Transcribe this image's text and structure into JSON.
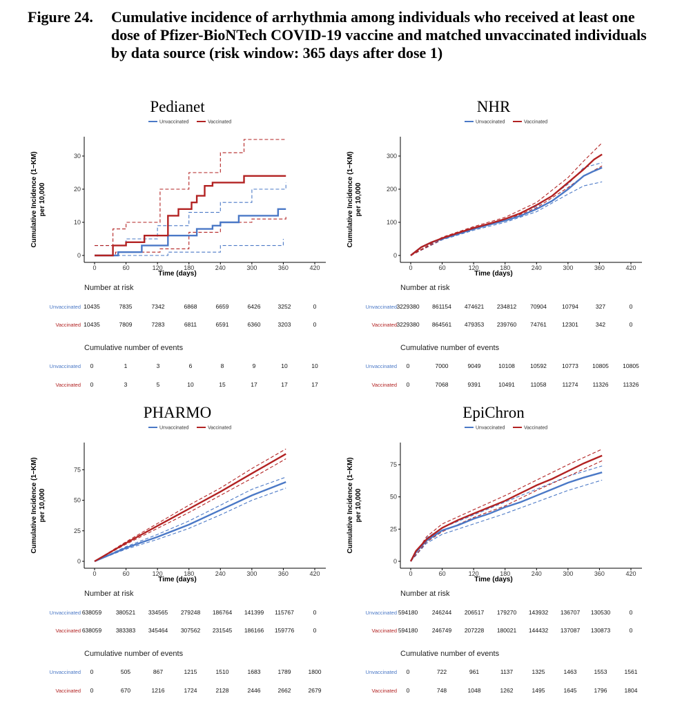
{
  "figure": {
    "label": "Figure 24.",
    "title": "Cumulative incidence of arrhythmia among individuals who received at least one dose of Pfizer-BioNTech COVID-19 vaccine and matched unvaccinated individuals by data source (risk window: 365 days after dose 1)"
  },
  "colors": {
    "unvaccinated": "#4a78c6",
    "vaccinated": "#b22222"
  },
  "legend": {
    "unvaccinated": "Unvaccinated",
    "vaccinated": "Vaccinated"
  },
  "labels": {
    "xlabel": "Time (days)",
    "ylabel_line1": "Cumulative Incidence (1−KM)",
    "ylabel_line2": "per 10,000",
    "risk_title": "Number at risk",
    "events_title": "Cumulative number of events",
    "row_unvacc": "Unvaccinated",
    "row_vacc": "Vaccinated"
  },
  "chart_data": [
    {
      "type": "line",
      "title": "Pedianet",
      "xlabel": "Time (days)",
      "ylabel": "Cumulative Incidence (1−KM) per 10,000",
      "xlim": [
        0,
        420
      ],
      "ylim": [
        0,
        35
      ],
      "x_ticks": [
        0,
        60,
        120,
        180,
        240,
        300,
        360,
        420
      ],
      "y_ticks": [
        0,
        10,
        20,
        30
      ],
      "step": true,
      "legend_position": "top",
      "series": [
        {
          "name": "Unvaccinated",
          "x": [
            0,
            40,
            45,
            60,
            90,
            125,
            140,
            170,
            195,
            215,
            225,
            240,
            255,
            275,
            300,
            350,
            365
          ],
          "y": [
            0,
            0,
            1,
            1,
            3,
            3,
            6,
            6,
            8,
            8,
            9,
            10,
            10,
            12,
            12,
            14,
            14
          ]
        },
        {
          "name": "Vaccinated",
          "x": [
            0,
            35,
            60,
            95,
            125,
            140,
            160,
            185,
            195,
            210,
            225,
            260,
            285,
            300,
            365
          ],
          "y": [
            0,
            3,
            4,
            6,
            6,
            12,
            14,
            16,
            18,
            21,
            22,
            22,
            24,
            24,
            24
          ]
        }
      ],
      "ci_bands": [
        {
          "series": "Unvaccinated",
          "lower": {
            "x": [
              0,
              45,
              140,
              240,
              360
            ],
            "y": [
              0,
              0,
              1,
              3,
              5
            ]
          },
          "upper": {
            "x": [
              0,
              60,
              120,
              180,
              240,
              300,
              365
            ],
            "y": [
              3,
              5,
              9,
              13,
              16,
              20,
              22
            ]
          }
        },
        {
          "series": "Vaccinated",
          "lower": {
            "x": [
              0,
              40,
              125,
              180,
              240,
              300,
              365
            ],
            "y": [
              0,
              1,
              2,
              7,
              10,
              11,
              12
            ]
          },
          "upper": {
            "x": [
              0,
              35,
              60,
              125,
              180,
              240,
              285,
              365
            ],
            "y": [
              3,
              8,
              10,
              20,
              25,
              31,
              35,
              35
            ]
          }
        }
      ],
      "risk_table": {
        "times": [
          0,
          60,
          120,
          180,
          240,
          300,
          360,
          420
        ],
        "number_at_risk": {
          "Unvaccinated": [
            "10435",
            "7835",
            "7342",
            "6868",
            "6659",
            "6426",
            "3252",
            "0"
          ],
          "Vaccinated": [
            "10435",
            "7809",
            "7283",
            "6811",
            "6591",
            "6360",
            "3203",
            "0"
          ]
        },
        "cumulative_events": {
          "Unvaccinated": [
            "0",
            "1",
            "3",
            "6",
            "8",
            "9",
            "10",
            "10"
          ],
          "Vaccinated": [
            "0",
            "3",
            "5",
            "10",
            "15",
            "17",
            "17",
            "17"
          ]
        }
      }
    },
    {
      "type": "line",
      "title": "NHR",
      "xlabel": "Time (days)",
      "ylabel": "Cumulative Incidence (1−KM) per 10,000",
      "xlim": [
        0,
        420
      ],
      "ylim": [
        0,
        350
      ],
      "x_ticks": [
        0,
        60,
        120,
        180,
        240,
        300,
        360,
        420
      ],
      "y_ticks": [
        0,
        100,
        200,
        300
      ],
      "step": false,
      "legend_position": "top",
      "series": [
        {
          "name": "Unvaccinated",
          "x": [
            0,
            20,
            40,
            60,
            90,
            120,
            150,
            180,
            210,
            240,
            270,
            300,
            330,
            350,
            365
          ],
          "y": [
            0,
            25,
            40,
            50,
            65,
            80,
            93,
            105,
            120,
            140,
            165,
            200,
            240,
            255,
            265
          ]
        },
        {
          "name": "Vaccinated",
          "x": [
            0,
            20,
            40,
            60,
            90,
            120,
            150,
            180,
            210,
            240,
            270,
            300,
            330,
            350,
            365
          ],
          "y": [
            0,
            25,
            40,
            52,
            68,
            83,
            96,
            110,
            128,
            152,
            180,
            220,
            260,
            290,
            305
          ]
        }
      ],
      "ci_bands": [
        {
          "series": "Unvaccinated",
          "lower": {
            "x": [
              0,
              60,
              120,
              180,
              240,
              300,
              330,
              365
            ],
            "y": [
              0,
              47,
              76,
              100,
              132,
              185,
              210,
              222
            ]
          },
          "upper": {
            "x": [
              0,
              60,
              120,
              180,
              240,
              300,
              330,
              365
            ],
            "y": [
              0,
              53,
              84,
              110,
              148,
              215,
              265,
              280
            ]
          }
        },
        {
          "series": "Vaccinated",
          "lower": {
            "x": [
              0,
              60,
              120,
              180,
              240,
              300,
              330,
              365
            ],
            "y": [
              0,
              49,
              79,
              105,
              144,
              205,
              240,
              270
            ]
          },
          "upper": {
            "x": [
              0,
              60,
              120,
              180,
              240,
              300,
              330,
              365
            ],
            "y": [
              0,
              55,
              87,
              115,
              160,
              235,
              285,
              340
            ]
          }
        }
      ],
      "risk_table": {
        "times": [
          0,
          60,
          120,
          180,
          240,
          300,
          360,
          420
        ],
        "number_at_risk": {
          "Unvaccinated": [
            "3229380",
            "861154",
            "474621",
            "234812",
            "70904",
            "10794",
            "327",
            "0"
          ],
          "Vaccinated": [
            "3229380",
            "864561",
            "479353",
            "239760",
            "74761",
            "12301",
            "342",
            "0"
          ]
        },
        "cumulative_events": {
          "Unvaccinated": [
            "0",
            "7000",
            "9049",
            "10108",
            "10592",
            "10773",
            "10805",
            "10805"
          ],
          "Vaccinated": [
            "0",
            "7068",
            "9391",
            "10491",
            "11058",
            "11274",
            "11326",
            "11326"
          ]
        }
      }
    },
    {
      "type": "line",
      "title": "PHARMO",
      "xlabel": "Time (days)",
      "ylabel": "Cumulative Incidence (1−KM) per 10,000",
      "xlim": [
        0,
        420
      ],
      "ylim": [
        0,
        95
      ],
      "x_ticks": [
        0,
        60,
        120,
        180,
        240,
        300,
        360,
        420
      ],
      "y_ticks": [
        0,
        25,
        50,
        75
      ],
      "step": false,
      "legend_position": "top",
      "series": [
        {
          "name": "Unvaccinated",
          "x": [
            0,
            60,
            120,
            180,
            240,
            300,
            365
          ],
          "y": [
            0,
            11,
            20,
            30,
            42,
            54,
            65
          ]
        },
        {
          "name": "Vaccinated",
          "x": [
            0,
            60,
            120,
            180,
            240,
            300,
            365
          ],
          "y": [
            0,
            15,
            29,
            43,
            57,
            72,
            88
          ]
        }
      ],
      "ci_bands": [
        {
          "series": "Unvaccinated",
          "lower": {
            "x": [
              0,
              60,
              120,
              180,
              240,
              300,
              365
            ],
            "y": [
              0,
              10,
              18,
              27,
              38,
              50,
              60
            ]
          },
          "upper": {
            "x": [
              0,
              60,
              120,
              180,
              240,
              300,
              365
            ],
            "y": [
              0,
              12,
              22,
              33,
              46,
              59,
              69
            ]
          }
        },
        {
          "series": "Vaccinated",
          "lower": {
            "x": [
              0,
              60,
              120,
              180,
              240,
              300,
              365
            ],
            "y": [
              0,
              14,
              27,
              40,
              54,
              68,
              84
            ]
          },
          "upper": {
            "x": [
              0,
              60,
              120,
              180,
              240,
              300,
              365
            ],
            "y": [
              0,
              16,
              31,
              46,
              60,
              76,
              92
            ]
          }
        }
      ],
      "risk_table": {
        "times": [
          0,
          60,
          120,
          180,
          240,
          300,
          360,
          420
        ],
        "number_at_risk": {
          "Unvaccinated": [
            "638059",
            "380521",
            "334565",
            "279248",
            "186764",
            "141399",
            "115767",
            "0"
          ],
          "Vaccinated": [
            "638059",
            "383383",
            "345464",
            "307562",
            "231545",
            "186166",
            "159776",
            "0"
          ]
        },
        "cumulative_events": {
          "Unvaccinated": [
            "0",
            "505",
            "867",
            "1215",
            "1510",
            "1683",
            "1789",
            "1800"
          ],
          "Vaccinated": [
            "0",
            "670",
            "1216",
            "1724",
            "2128",
            "2446",
            "2662",
            "2679"
          ]
        }
      }
    },
    {
      "type": "line",
      "title": "EpiChron",
      "xlabel": "Time (days)",
      "ylabel": "Cumulative Incidence (1−KM) per 10,000",
      "xlim": [
        0,
        420
      ],
      "ylim": [
        0,
        90
      ],
      "x_ticks": [
        0,
        60,
        120,
        180,
        240,
        300,
        360,
        420
      ],
      "y_ticks": [
        0,
        25,
        50,
        75
      ],
      "step": false,
      "legend_position": "top",
      "series": [
        {
          "name": "Unvaccinated",
          "x": [
            0,
            10,
            30,
            60,
            90,
            120,
            150,
            180,
            210,
            240,
            270,
            300,
            330,
            365
          ],
          "y": [
            0,
            7,
            16,
            24,
            28,
            33,
            37,
            42,
            46,
            51,
            56,
            61,
            65,
            69
          ]
        },
        {
          "name": "Vaccinated",
          "x": [
            0,
            10,
            30,
            60,
            90,
            120,
            150,
            180,
            210,
            240,
            270,
            300,
            330,
            365
          ],
          "y": [
            0,
            8,
            17,
            26,
            32,
            37,
            42,
            47,
            53,
            59,
            64,
            70,
            76,
            82
          ]
        }
      ],
      "ci_bands": [
        {
          "series": "Unvaccinated",
          "lower": {
            "x": [
              0,
              30,
              60,
              120,
              180,
              240,
              300,
              365
            ],
            "y": [
              0,
              14,
              21,
              29,
              37,
              46,
              55,
              63
            ]
          },
          "upper": {
            "x": [
              0,
              30,
              60,
              120,
              180,
              240,
              300,
              365
            ],
            "y": [
              0,
              18,
              26,
              36,
              46,
              56,
              66,
              74
            ]
          }
        },
        {
          "series": "Vaccinated",
          "lower": {
            "x": [
              0,
              30,
              60,
              120,
              180,
              240,
              300,
              365
            ],
            "y": [
              0,
              15,
              23,
              34,
              43,
              55,
              66,
              78
            ]
          },
          "upper": {
            "x": [
              0,
              30,
              60,
              120,
              180,
              240,
              300,
              365
            ],
            "y": [
              0,
              19,
              29,
              40,
              51,
              63,
              75,
              87
            ]
          }
        }
      ],
      "risk_table": {
        "times": [
          0,
          60,
          120,
          180,
          240,
          300,
          360,
          420
        ],
        "number_at_risk": {
          "Unvaccinated": [
            "594180",
            "246244",
            "206517",
            "179270",
            "143932",
            "136707",
            "130530",
            "0"
          ],
          "Vaccinated": [
            "594180",
            "246749",
            "207228",
            "180021",
            "144432",
            "137087",
            "130873",
            "0"
          ]
        },
        "cumulative_events": {
          "Unvaccinated": [
            "0",
            "722",
            "961",
            "1137",
            "1325",
            "1463",
            "1553",
            "1561"
          ],
          "Vaccinated": [
            "0",
            "748",
            "1048",
            "1262",
            "1495",
            "1645",
            "1796",
            "1804"
          ]
        }
      }
    }
  ]
}
